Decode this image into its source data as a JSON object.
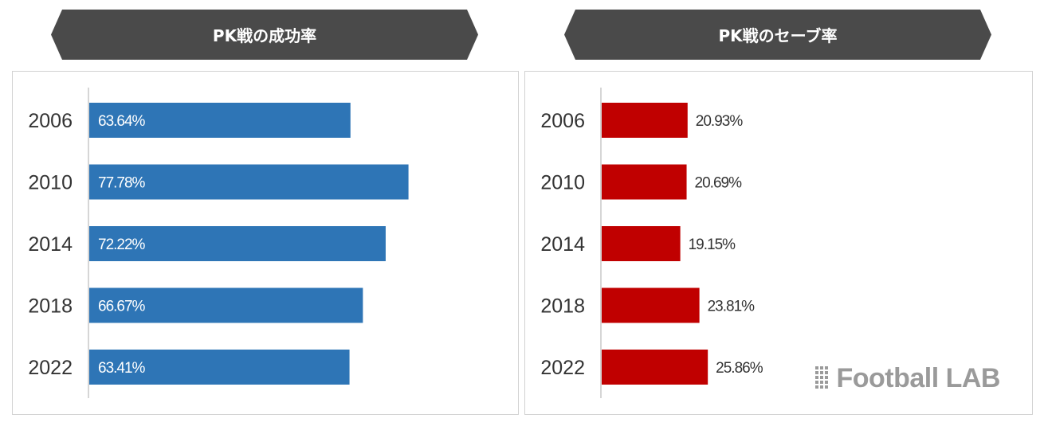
{
  "chart_data": [
    {
      "type": "bar",
      "orientation": "horizontal",
      "title": "PK戦の成功率",
      "categories": [
        "2006",
        "2010",
        "2014",
        "2018",
        "2022"
      ],
      "values": [
        63.64,
        77.78,
        72.22,
        66.67,
        63.41
      ],
      "value_labels": [
        "63.64%",
        "77.78%",
        "72.22%",
        "66.67%",
        "63.41%"
      ],
      "color": "#2e75b6",
      "label_position": "inside",
      "xlim": [
        0,
        100
      ],
      "grid": false
    },
    {
      "type": "bar",
      "orientation": "horizontal",
      "title": "PK戦のセーブ率",
      "categories": [
        "2006",
        "2010",
        "2014",
        "2018",
        "2022"
      ],
      "values": [
        20.93,
        20.69,
        19.15,
        23.81,
        25.86
      ],
      "value_labels": [
        "20.93%",
        "20.69%",
        "19.15%",
        "23.81%",
        "25.86%"
      ],
      "color": "#c00000",
      "label_position": "outside",
      "xlim": [
        0,
        100
      ],
      "grid": false
    }
  ],
  "watermark": {
    "text": "Football LAB",
    "icon": "grid-logo-icon"
  }
}
